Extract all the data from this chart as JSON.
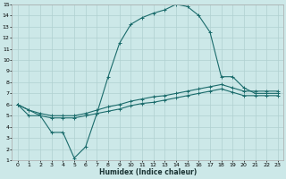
{
  "xlabel": "Humidex (Indice chaleur)",
  "bg_color": "#cce8e8",
  "grid_color": "#b0d0d0",
  "line_color": "#1a6b6b",
  "xlim": [
    -0.5,
    23.5
  ],
  "ylim": [
    1,
    15
  ],
  "xticks": [
    0,
    1,
    2,
    3,
    4,
    5,
    6,
    7,
    8,
    9,
    10,
    11,
    12,
    13,
    14,
    15,
    16,
    17,
    18,
    19,
    20,
    21,
    22,
    23
  ],
  "yticks": [
    1,
    2,
    3,
    4,
    5,
    6,
    7,
    8,
    9,
    10,
    11,
    12,
    13,
    14,
    15
  ],
  "line1_x": [
    0,
    1,
    2,
    3,
    4,
    5,
    6,
    7,
    8,
    9,
    10,
    11,
    12,
    13,
    14,
    15,
    16,
    17,
    18,
    19,
    20,
    21,
    22,
    23
  ],
  "line1_y": [
    6,
    5,
    5,
    3.5,
    3.5,
    1.2,
    2.2,
    5.2,
    8.5,
    11.5,
    13.2,
    13.8,
    14.2,
    14.5,
    15,
    14.8,
    14,
    12.5,
    8.5,
    8.5,
    7.5,
    7.0,
    7.0,
    7.0
  ],
  "line2_x": [
    0,
    1,
    2,
    3,
    4,
    5,
    6,
    7,
    8,
    9,
    10,
    11,
    12,
    13,
    14,
    15,
    16,
    17,
    18,
    19,
    20,
    21,
    22,
    23
  ],
  "line2_y": [
    6,
    5.5,
    5.2,
    5.0,
    5.0,
    5.0,
    5.2,
    5.5,
    5.8,
    6.0,
    6.3,
    6.5,
    6.7,
    6.8,
    7.0,
    7.2,
    7.4,
    7.6,
    7.8,
    7.5,
    7.2,
    7.2,
    7.2,
    7.2
  ],
  "line3_x": [
    0,
    1,
    2,
    3,
    4,
    5,
    6,
    7,
    8,
    9,
    10,
    11,
    12,
    13,
    14,
    15,
    16,
    17,
    18,
    19,
    20,
    21,
    22,
    23
  ],
  "line3_y": [
    6,
    5.5,
    5.0,
    4.8,
    4.8,
    4.8,
    5.0,
    5.2,
    5.4,
    5.6,
    5.9,
    6.1,
    6.2,
    6.4,
    6.6,
    6.8,
    7.0,
    7.2,
    7.4,
    7.1,
    6.8,
    6.8,
    6.8,
    6.8
  ]
}
